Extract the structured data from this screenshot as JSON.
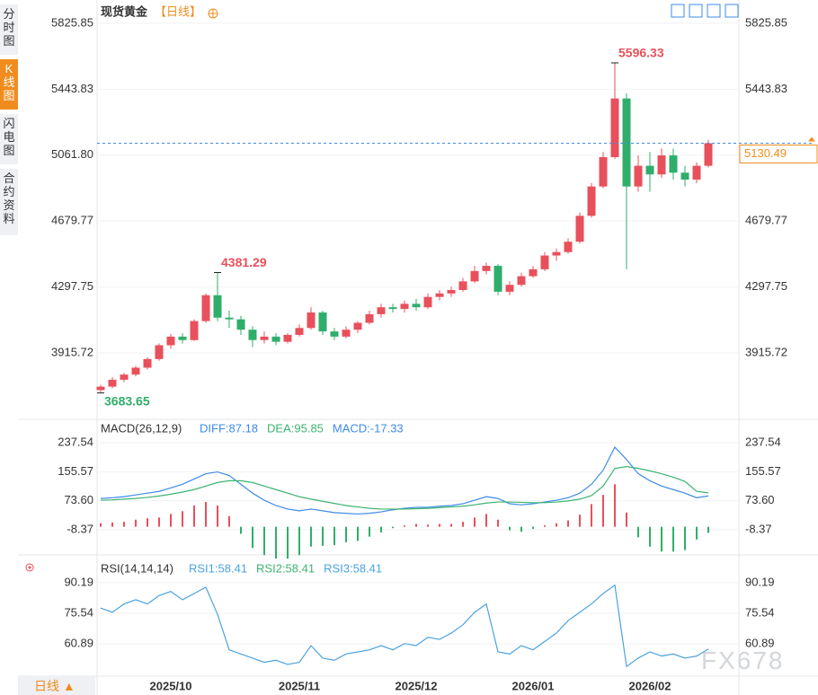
{
  "sidebar": [
    "分时图",
    "K线图",
    "闪电图",
    "合约资料"
  ],
  "timeframe_button": "日线 ▲",
  "watermark": "FX678",
  "chart_data": [
    {
      "type": "candlestick",
      "title": "现货黄金",
      "subtitle": "【日线】",
      "categories": [
        null,
        null,
        null,
        null,
        null,
        null,
        "2025/10",
        null,
        null,
        null,
        null,
        null,
        null,
        null,
        null,
        null,
        null,
        "2025/11",
        null,
        null,
        null,
        null,
        null,
        null,
        null,
        null,
        null,
        "2025/12",
        null,
        null,
        null,
        null,
        null,
        null,
        null,
        null,
        null,
        "2026/01",
        null,
        null,
        null,
        null,
        null,
        null,
        null,
        null,
        null,
        "2026/02",
        null,
        null,
        null,
        null,
        null
      ],
      "candles": [
        [
          3700,
          3730,
          3683.65,
          3720
        ],
        [
          3720,
          3775,
          3710,
          3760
        ],
        [
          3760,
          3800,
          3745,
          3790
        ],
        [
          3790,
          3840,
          3780,
          3830
        ],
        [
          3830,
          3890,
          3820,
          3880
        ],
        [
          3880,
          3970,
          3870,
          3960
        ],
        [
          3960,
          4025,
          3940,
          4010
        ],
        [
          4010,
          4030,
          3970,
          3990
        ],
        [
          3990,
          4110,
          3985,
          4100
        ],
        [
          4100,
          4260,
          4090,
          4250
        ],
        [
          4250,
          4381.29,
          4100,
          4120
        ],
        [
          4120,
          4160,
          4060,
          4110
        ],
        [
          4110,
          4130,
          4020,
          4050
        ],
        [
          4050,
          4070,
          3950,
          3990
        ],
        [
          3990,
          4040,
          3970,
          4010
        ],
        [
          4010,
          4030,
          3960,
          3980
        ],
        [
          3980,
          4030,
          3970,
          4020
        ],
        [
          4020,
          4080,
          4010,
          4060
        ],
        [
          4060,
          4180,
          4050,
          4150
        ],
        [
          4150,
          4160,
          4020,
          4040
        ],
        [
          4040,
          4060,
          3990,
          4010
        ],
        [
          4010,
          4070,
          4000,
          4050
        ],
        [
          4050,
          4100,
          4030,
          4090
        ],
        [
          4090,
          4160,
          4080,
          4140
        ],
        [
          4140,
          4200,
          4120,
          4180
        ],
        [
          4180,
          4200,
          4150,
          4170
        ],
        [
          4170,
          4220,
          4150,
          4200
        ],
        [
          4200,
          4230,
          4160,
          4180
        ],
        [
          4180,
          4260,
          4170,
          4240
        ],
        [
          4240,
          4280,
          4220,
          4260
        ],
        [
          4260,
          4300,
          4240,
          4280
        ],
        [
          4280,
          4350,
          4270,
          4330
        ],
        [
          4330,
          4420,
          4320,
          4390
        ],
        [
          4390,
          4440,
          4370,
          4420
        ],
        [
          4420,
          4430,
          4250,
          4270
        ],
        [
          4270,
          4330,
          4250,
          4310
        ],
        [
          4310,
          4380,
          4300,
          4360
        ],
        [
          4360,
          4420,
          4350,
          4400
        ],
        [
          4400,
          4500,
          4390,
          4480
        ],
        [
          4480,
          4520,
          4450,
          4500
        ],
        [
          4500,
          4580,
          4490,
          4560
        ],
        [
          4560,
          4730,
          4550,
          4710
        ],
        [
          4710,
          4900,
          4700,
          4880
        ],
        [
          4880,
          5080,
          4870,
          5050
        ],
        [
          5050,
          5596.33,
          5040,
          5390
        ],
        [
          5390,
          5420,
          4400,
          4880
        ],
        [
          4880,
          5060,
          4850,
          5000
        ],
        [
          5000,
          5080,
          4850,
          4950
        ],
        [
          4950,
          5100,
          4930,
          5060
        ],
        [
          5060,
          5100,
          4920,
          4960
        ],
        [
          4960,
          5000,
          4880,
          4920
        ],
        [
          4920,
          5020,
          4900,
          5000
        ],
        [
          5000,
          5150,
          4990,
          5130.49
        ]
      ],
      "up_color": "#e8505b",
      "down_color": "#2fae6b",
      "last_line_color": "#3d8be8",
      "last_label_color": "#f08c1e",
      "ylim": [
        3541,
        5919
      ],
      "yticks": [
        5825.85,
        5443.83,
        {
          "value": 5061.8,
          "label": "5061.80"
        },
        4679.77,
        4297.75,
        3915.72
      ],
      "grid": true
    },
    {
      "type": "macd",
      "title": "MACD(26,12,9)",
      "series": [
        {
          "label": "DIFF:87.18",
          "color": "#3d8be8",
          "values": [
            80,
            82,
            85,
            90,
            95,
            100,
            110,
            120,
            135,
            150,
            155,
            145,
            120,
            95,
            75,
            60,
            50,
            45,
            50,
            45,
            40,
            38,
            36,
            38,
            42,
            48,
            52,
            55,
            55,
            58,
            60,
            65,
            75,
            85,
            80,
            65,
            62,
            65,
            70,
            75,
            82,
            95,
            120,
            160,
            225,
            190,
            150,
            130,
            115,
            105,
            95,
            82,
            87.18
          ]
        },
        {
          "label": "DEA:95.85",
          "color": "#3cb371",
          "values": [
            75,
            76,
            78,
            80,
            83,
            87,
            92,
            98,
            105,
            115,
            125,
            130,
            130,
            125,
            115,
            105,
            95,
            85,
            78,
            72,
            66,
            60,
            56,
            52,
            50,
            50,
            50,
            51,
            52,
            54,
            56,
            58,
            62,
            67,
            70,
            70,
            69,
            68,
            68,
            70,
            73,
            78,
            88,
            115,
            165,
            170,
            165,
            158,
            150,
            140,
            128,
            100,
            95.85
          ]
        },
        {
          "label": "MACD:-17.33",
          "color": "#3d8be8",
          "up_color": "#e8505b",
          "down_color": "#2fae6b",
          "kind": "histogram",
          "values": [
            10,
            12,
            14,
            20,
            24,
            26,
            36,
            44,
            60,
            70,
            60,
            30,
            -20,
            -60,
            -80,
            -90,
            -90,
            -80,
            -56,
            -54,
            -52,
            -44,
            -40,
            -28,
            -16,
            -4,
            4,
            8,
            6,
            8,
            8,
            14,
            26,
            36,
            20,
            -10,
            -14,
            -6,
            4,
            10,
            18,
            34,
            64,
            90,
            120,
            40,
            -30,
            -56,
            -70,
            -70,
            -66,
            -36,
            -17.33
          ]
        }
      ],
      "ylim": [
        -72,
        296
      ],
      "yticks": [
        237.54,
        155.57,
        {
          "value": 73.6,
          "label": "73.60"
        },
        -8.37
      ],
      "grid": true
    },
    {
      "type": "line",
      "title": "RSI(14,14,14)",
      "series": [
        {
          "label": "RSI1:58.41",
          "color": "#4aa3e0",
          "values": [
            78,
            76,
            80,
            82,
            80,
            84,
            86,
            82,
            85,
            88,
            75,
            58,
            56,
            54,
            52,
            53,
            51,
            52,
            60,
            54,
            53,
            56,
            57,
            58,
            60,
            58,
            61,
            60,
            64,
            63,
            66,
            70,
            76,
            80,
            57,
            56,
            60,
            58,
            62,
            66,
            72,
            76,
            80,
            85,
            89,
            50,
            54,
            57,
            55,
            56,
            54,
            55,
            58.41
          ]
        }
      ],
      "extra_labels": [
        {
          "label": "RSI2:58.41",
          "color": "#3cb371"
        },
        {
          "label": "RSI3:58.41",
          "color": "#4aa3e0"
        }
      ],
      "ylim": [
        44.5,
        100.5
      ],
      "yticks": [
        90.19,
        75.54,
        60.89
      ],
      "grid": true
    }
  ]
}
